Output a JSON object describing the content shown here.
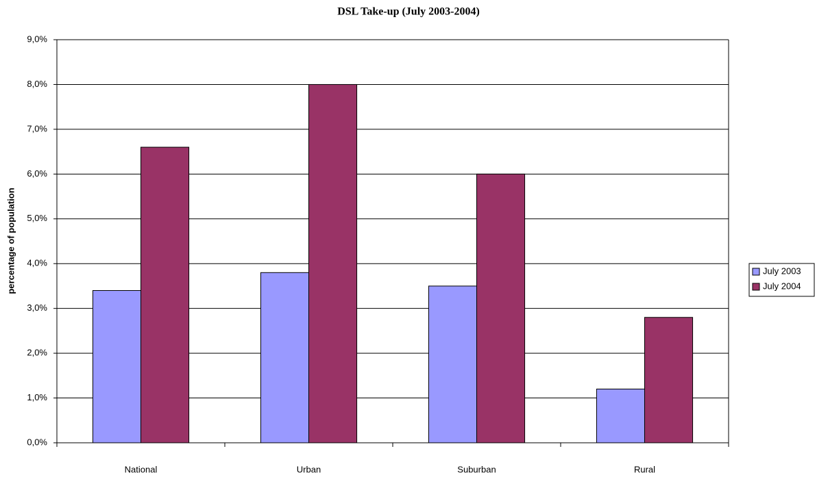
{
  "chart_data": {
    "type": "bar",
    "title": "DSL Take-up (July 2003-2004)",
    "y_label": "percentage of population",
    "categories": [
      "National",
      "Urban",
      "Suburban",
      "Rural"
    ],
    "series": [
      {
        "name": "July 2003",
        "color": "#9999ff",
        "values": [
          3.4,
          3.8,
          3.5,
          1.2
        ]
      },
      {
        "name": "July 2004",
        "color": "#993366",
        "values": [
          6.6,
          8.0,
          6.0,
          2.8
        ]
      }
    ],
    "ylim": [
      0,
      9
    ],
    "yticks": [
      {
        "value": 0,
        "label": "0,0%"
      },
      {
        "value": 1,
        "label": "1,0%"
      },
      {
        "value": 2,
        "label": "2,0%"
      },
      {
        "value": 3,
        "label": "3,0%"
      },
      {
        "value": 4,
        "label": "4,0%"
      },
      {
        "value": 5,
        "label": "5,0%"
      },
      {
        "value": 6,
        "label": "6,0%"
      },
      {
        "value": 7,
        "label": "7,0%"
      },
      {
        "value": 8,
        "label": "8,0%"
      },
      {
        "value": 9,
        "label": "9,0%"
      }
    ],
    "grid": true,
    "legend": "right"
  }
}
